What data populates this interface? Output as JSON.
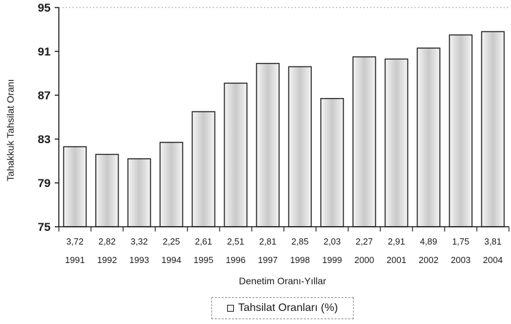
{
  "chart_data": {
    "type": "bar",
    "categories": [
      "1991",
      "1992",
      "1993",
      "1994",
      "1995",
      "1996",
      "1997",
      "1998",
      "1999",
      "2000",
      "2001",
      "2002",
      "2003",
      "2004"
    ],
    "category_prefix_labels": [
      "3,72",
      "2,82",
      "3,32",
      "2,25",
      "2,61",
      "2,51",
      "2,81",
      "2,85",
      "2,03",
      "2,27",
      "2,91",
      "4,89",
      "1,75",
      "3,81"
    ],
    "series": [
      {
        "name": "Tahsilat Oranları (%)",
        "values": [
          82.3,
          81.6,
          81.2,
          82.7,
          85.5,
          88.1,
          89.9,
          89.6,
          86.7,
          90.5,
          90.3,
          91.3,
          92.5,
          92.8
        ]
      }
    ],
    "xlabel": "Denetim Oranı-Yıllar",
    "ylabel": "Tahakkuk Tahsilat Oranı",
    "ylim": [
      75,
      95
    ],
    "yticks": [
      75,
      79,
      83,
      87,
      91,
      95
    ],
    "grid": "top-dotted",
    "legend_position": "bottom-center",
    "colors": {
      "bar_edge": "#1a1a1a",
      "bar_fill_center": "#c9c9c9",
      "bar_fill_edge": "#f4f4f4"
    }
  }
}
